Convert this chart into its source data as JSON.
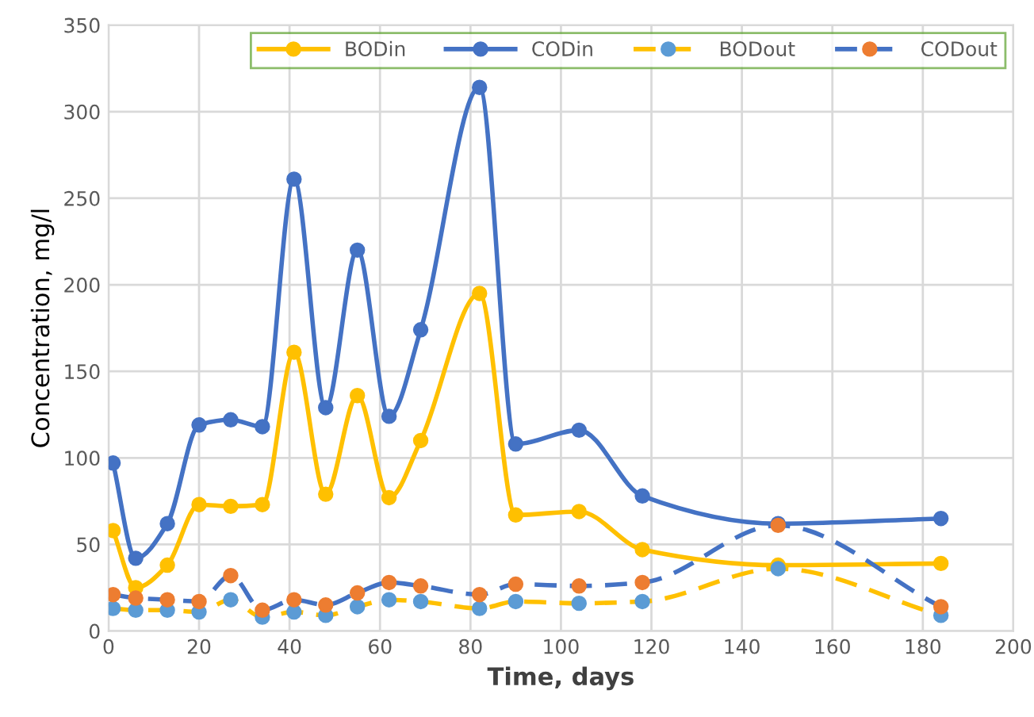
{
  "chart_data": {
    "type": "line",
    "xlabel": "Time, days",
    "ylabel": "Concentration, mg/l",
    "x": [
      1,
      6,
      13,
      20,
      27,
      34,
      41,
      48,
      55,
      62,
      69,
      82,
      90,
      104,
      118,
      148,
      184
    ],
    "series": [
      {
        "name": "BODin",
        "color": "#ffc000",
        "line_style": "solid",
        "values": [
          58,
          25,
          38,
          73,
          72,
          73,
          161,
          79,
          136,
          77,
          110,
          195,
          67,
          69,
          47,
          38,
          39
        ]
      },
      {
        "name": "CODin",
        "color": "#4472c4",
        "line_style": "solid",
        "values": [
          97,
          42,
          62,
          119,
          122,
          118,
          261,
          129,
          220,
          124,
          174,
          314,
          108,
          116,
          78,
          62,
          65
        ]
      },
      {
        "name": "BODout",
        "color": "#ffc000",
        "colors": [
          "#5b9bd5",
          "#5b9bd5",
          "#5b9bd5",
          "#5b9bd5",
          "#5b9bd5",
          "#5b9bd5",
          "#5b9bd5",
          "#5b9bd5",
          "#5b9bd5",
          "#5b9bd5",
          "#5b9bd5",
          "#5b9bd5",
          "#5b9bd5",
          "#5b9bd5",
          "#5b9bd5",
          "#5b9bd5",
          "#5b9bd5"
        ],
        "line_style": "dashed",
        "values": [
          13,
          12,
          12,
          11,
          18,
          8,
          11,
          9,
          14,
          18,
          17,
          13,
          17,
          16,
          17,
          36,
          9
        ]
      },
      {
        "name": "CODout",
        "color": "#4472c4",
        "colors": [
          "#ed7d31",
          "#ed7d31",
          "#ed7d31",
          "#ed7d31",
          "#ed7d31",
          "#ed7d31",
          "#ed7d31",
          "#ed7d31",
          "#ed7d31",
          "#ed7d31",
          "#ed7d31",
          "#ed7d31",
          "#ed7d31",
          "#ed7d31",
          "#ed7d31",
          "#ed7d31",
          "#ed7d31"
        ],
        "line_style": "dashed",
        "values": [
          21,
          19,
          18,
          17,
          32,
          12,
          18,
          15,
          22,
          28,
          26,
          21,
          27,
          26,
          28,
          61,
          14
        ]
      }
    ],
    "xlim": [
      0,
      200
    ],
    "xticks": [
      0,
      20,
      40,
      60,
      80,
      100,
      120,
      140,
      160,
      180,
      200
    ],
    "ylim": [
      0,
      350
    ],
    "yticks": [
      0,
      50,
      100,
      150,
      200,
      250,
      300,
      350
    ],
    "grid": true,
    "legend": "top right",
    "marker": "circle"
  }
}
